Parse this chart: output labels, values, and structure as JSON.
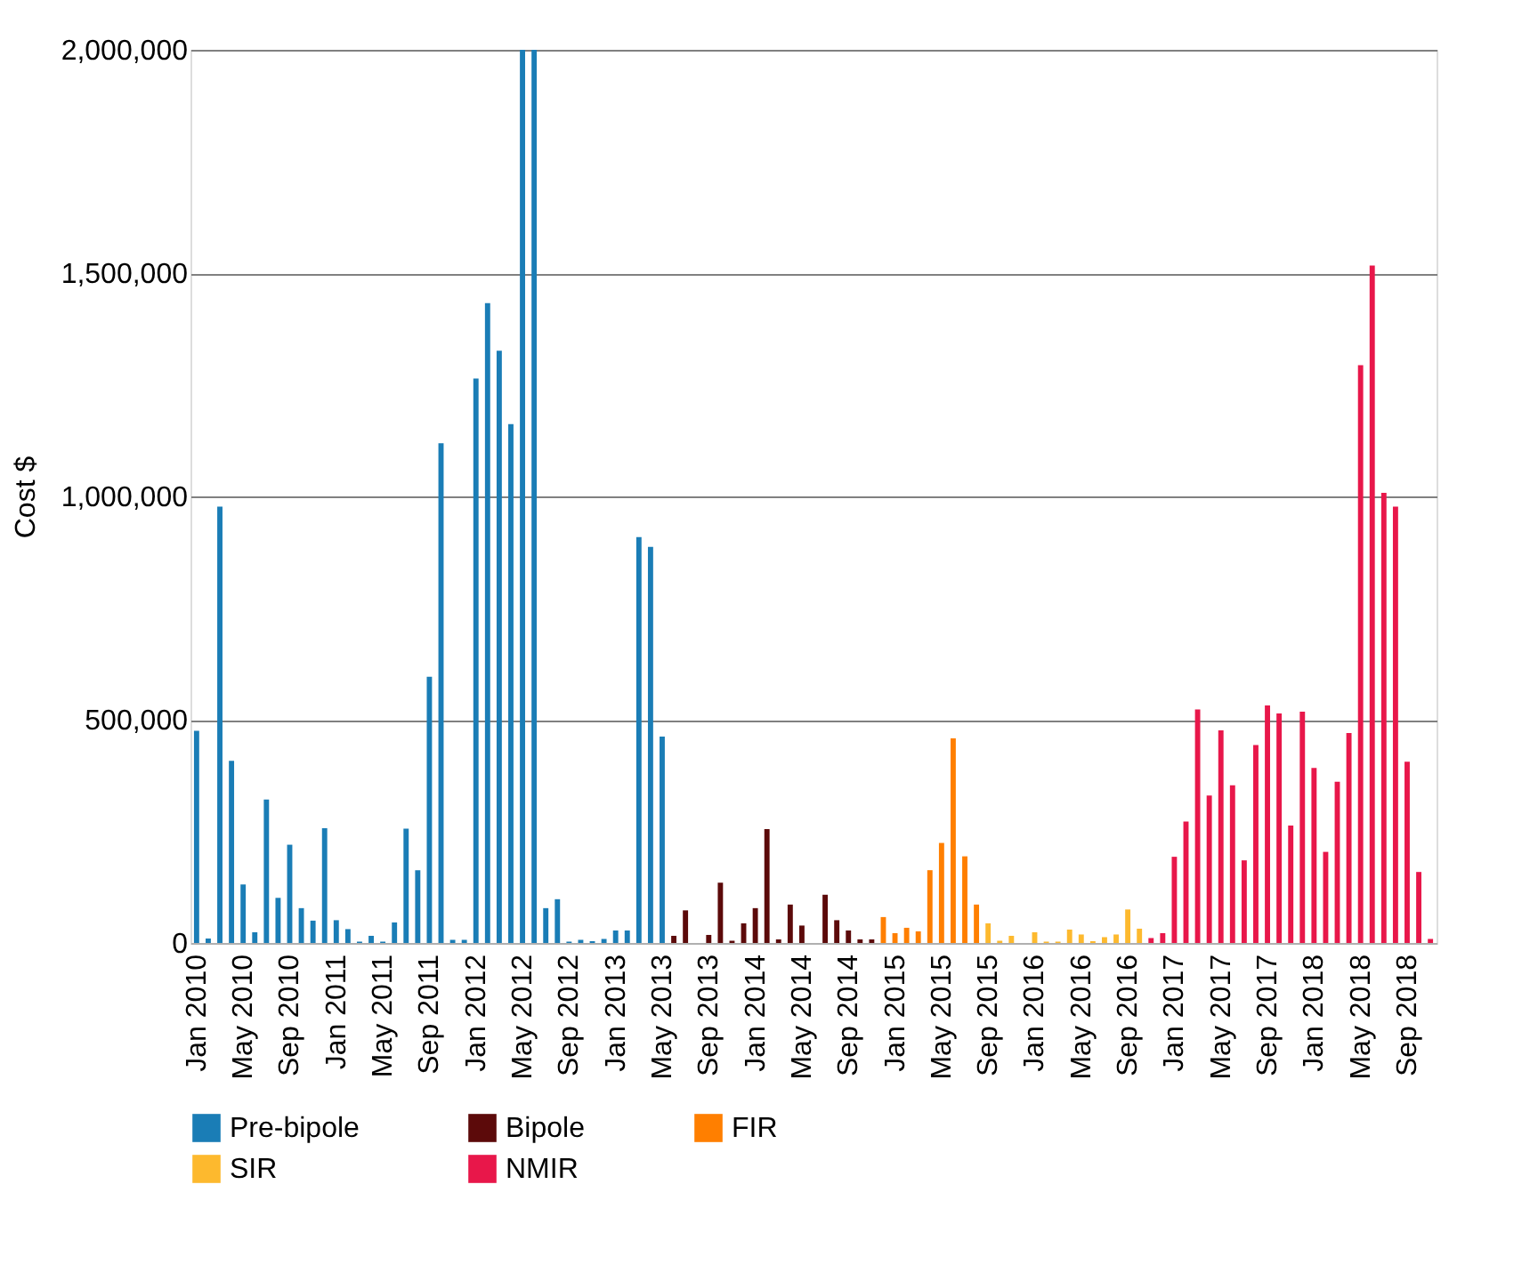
{
  "chart_data": {
    "type": "bar",
    "ylabel": "Cost $",
    "ylim": [
      0,
      2000000
    ],
    "yticks": [
      0,
      {
        "value": 500000,
        "label": "500,000"
      },
      {
        "value": 1000000,
        "label": "1,000,000"
      },
      {
        "value": 1500000,
        "label": "1,500,000"
      },
      {
        "value": 2000000,
        "label": "2,000,000"
      }
    ],
    "grid": "y",
    "legend": "bottom",
    "categories": [
      "Jan 2010",
      null,
      null,
      null,
      "May 2010",
      null,
      null,
      null,
      "Sep 2010",
      null,
      null,
      null,
      "Jan 2011",
      null,
      null,
      null,
      "May 2011",
      null,
      null,
      null,
      "Sep 2011",
      null,
      null,
      null,
      "Jan 2012",
      null,
      null,
      null,
      "May 2012",
      null,
      null,
      null,
      "Sep 2012",
      null,
      null,
      null,
      "Jan 2013",
      null,
      null,
      null,
      "May 2013",
      null,
      null,
      null,
      "Sep 2013",
      null,
      null,
      null,
      "Jan 2014",
      null,
      null,
      null,
      "May 2014",
      null,
      null,
      null,
      "Sep 2014",
      null,
      null,
      null,
      "Jan 2015",
      null,
      null,
      null,
      "May 2015",
      null,
      null,
      null,
      "Sep 2015",
      null,
      null,
      null,
      "Jan 2016",
      null,
      null,
      null,
      "May 2016",
      null,
      null,
      null,
      "Sep 2016",
      null,
      null,
      null,
      "Jan 2017",
      null,
      null,
      null,
      "May 2017",
      null,
      null,
      null,
      "Sep 2017",
      null,
      null,
      null,
      "Jan 2018",
      null,
      null,
      null,
      "May 2018",
      null,
      null,
      null,
      "Sep 2018",
      null,
      null
    ],
    "series": [
      {
        "name": "Pre-bipole",
        "color": "#1a7db6",
        "values": [
          475000,
          10000,
          977000,
          408000,
          131000,
          24000,
          321000,
          101000,
          220000,
          78000,
          50000,
          257000,
          51000,
          31000,
          3000,
          16000,
          3000,
          46000,
          256000,
          163000,
          596000,
          1119000,
          7000,
          7000,
          1264000,
          1433000,
          1326000,
          1162000,
          2000000,
          2000000,
          78000,
          98000,
          3000,
          7000,
          4000,
          9000,
          28000,
          28000,
          909000,
          887000,
          462000,
          null,
          null,
          null,
          null,
          null,
          null,
          null,
          null,
          null,
          null,
          null,
          null,
          null,
          null,
          null,
          null,
          null,
          null,
          null,
          null,
          null,
          null,
          null,
          null,
          null,
          null,
          null,
          null,
          null,
          null,
          null,
          null,
          null,
          null,
          null,
          null,
          null,
          null,
          null,
          null,
          null,
          null,
          null,
          null,
          null,
          null,
          null,
          null,
          null,
          null,
          null,
          null,
          null,
          null,
          null,
          null,
          null,
          null,
          null,
          null,
          null,
          null,
          null,
          null,
          null,
          null
        ]
      },
      {
        "name": "Bipole",
        "color": "#5c0a0a",
        "values": [
          null,
          null,
          null,
          null,
          null,
          null,
          null,
          null,
          null,
          null,
          null,
          null,
          null,
          null,
          null,
          null,
          null,
          null,
          null,
          null,
          null,
          null,
          null,
          null,
          null,
          null,
          null,
          null,
          null,
          null,
          null,
          null,
          null,
          null,
          null,
          null,
          null,
          null,
          null,
          null,
          null,
          16000,
          73000,
          null,
          18000,
          135000,
          5000,
          44000,
          78000,
          255000,
          8000,
          86000,
          39000,
          0,
          108000,
          51000,
          28000,
          8000,
          8000,
          null,
          null,
          null,
          null,
          null,
          null,
          null,
          null,
          null,
          null,
          null,
          null,
          null,
          null,
          null,
          null,
          null,
          null,
          null,
          null,
          null,
          null,
          null,
          null,
          null,
          null,
          null,
          null,
          null,
          null,
          null,
          null,
          null,
          null,
          null,
          null,
          null,
          null,
          null,
          null,
          null,
          null,
          null,
          null,
          null,
          null,
          null,
          null
        ]
      },
      {
        "name": "FIR",
        "color": "#ff7f00",
        "values": [
          null,
          null,
          null,
          null,
          null,
          null,
          null,
          null,
          null,
          null,
          null,
          null,
          null,
          null,
          null,
          null,
          null,
          null,
          null,
          null,
          null,
          null,
          null,
          null,
          null,
          null,
          null,
          null,
          null,
          null,
          null,
          null,
          null,
          null,
          null,
          null,
          null,
          null,
          null,
          null,
          null,
          null,
          null,
          null,
          null,
          null,
          null,
          null,
          null,
          null,
          null,
          null,
          null,
          null,
          null,
          null,
          null,
          null,
          null,
          58000,
          22000,
          34000,
          26000,
          163000,
          224000,
          458000,
          194000,
          86000,
          null,
          null,
          null,
          null,
          null,
          null,
          null,
          null,
          null,
          null,
          null,
          null,
          null,
          null,
          null,
          null,
          null,
          null,
          null,
          null,
          null,
          null,
          null,
          null,
          null,
          null,
          null,
          null,
          null,
          null,
          null,
          null,
          null,
          null,
          null,
          null,
          null,
          null,
          null
        ]
      },
      {
        "name": "SIR",
        "color": "#fdb92e",
        "values": [
          null,
          null,
          null,
          null,
          null,
          null,
          null,
          null,
          null,
          null,
          null,
          null,
          null,
          null,
          null,
          null,
          null,
          null,
          null,
          null,
          null,
          null,
          null,
          null,
          null,
          null,
          null,
          null,
          null,
          null,
          null,
          null,
          null,
          null,
          null,
          null,
          null,
          null,
          null,
          null,
          null,
          null,
          null,
          null,
          null,
          null,
          null,
          null,
          null,
          null,
          null,
          null,
          null,
          null,
          null,
          null,
          null,
          null,
          null,
          null,
          null,
          null,
          null,
          null,
          null,
          null,
          null,
          null,
          44000,
          5000,
          16000,
          0,
          24000,
          3000,
          3000,
          30000,
          19000,
          4000,
          13000,
          19000,
          75000,
          32000,
          null,
          null,
          null,
          null,
          null,
          null,
          null,
          null,
          null,
          null,
          null,
          null,
          null,
          null,
          null,
          null,
          null,
          null,
          null,
          null,
          null,
          null,
          null,
          null,
          null
        ]
      },
      {
        "name": "NMIR",
        "color": "#e8174a",
        "values": [
          null,
          null,
          null,
          null,
          null,
          null,
          null,
          null,
          null,
          null,
          null,
          null,
          null,
          null,
          null,
          null,
          null,
          null,
          null,
          null,
          null,
          null,
          null,
          null,
          null,
          null,
          null,
          null,
          null,
          null,
          null,
          null,
          null,
          null,
          null,
          null,
          null,
          null,
          null,
          null,
          null,
          null,
          null,
          null,
          null,
          null,
          null,
          null,
          null,
          null,
          null,
          null,
          null,
          null,
          null,
          null,
          null,
          null,
          null,
          null,
          null,
          null,
          null,
          null,
          null,
          null,
          null,
          null,
          null,
          null,
          null,
          null,
          null,
          null,
          null,
          null,
          null,
          null,
          null,
          null,
          null,
          null,
          11000,
          22000,
          193000,
          272000,
          523000,
          330000,
          476000,
          353000,
          185000,
          443000,
          532000,
          514000,
          263000,
          518000,
          392000,
          204000,
          361000,
          470000,
          1294000,
          1517000,
          1008000,
          977000,
          406000,
          159000,
          9000
        ]
      }
    ]
  }
}
